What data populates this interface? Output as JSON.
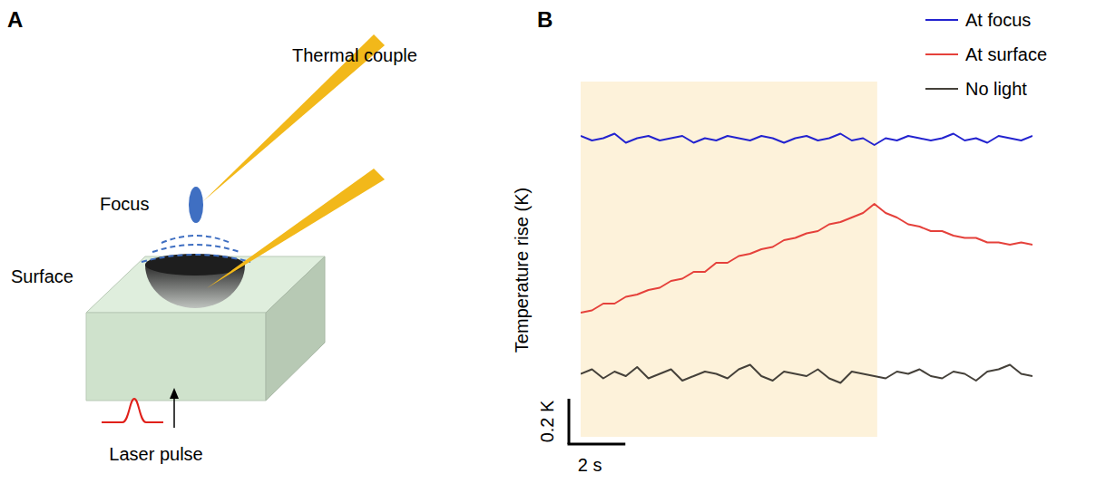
{
  "diagram": {
    "panel": "A",
    "labels": {
      "thermal_couple": "Thermal couple",
      "focus": "Focus",
      "surface": "Surface",
      "laser_pulse": "Laser pulse"
    }
  },
  "chart_data": {
    "panel": "B",
    "type": "line",
    "y_label": "Temperature rise (K)",
    "xlim": [
      0,
      16
    ],
    "ylim": [
      0,
      1.6
    ],
    "tick_labels": false,
    "legend": "top-right",
    "light_period": [
      0,
      10.5
    ],
    "scale_bar": {
      "y": 0.2,
      "y_label": "0.2 K",
      "x": 2,
      "x_label": "2 s"
    },
    "x": [
      0,
      0.4,
      0.8,
      1.2,
      1.6,
      2,
      2.4,
      2.8,
      3.2,
      3.6,
      4,
      4.4,
      4.8,
      5.2,
      5.6,
      6,
      6.4,
      6.8,
      7.2,
      7.6,
      8,
      8.4,
      8.8,
      9.2,
      9.6,
      10,
      10.4,
      10.8,
      11.2,
      11.6,
      12,
      12.4,
      12.8,
      13.2,
      13.6,
      14,
      14.4,
      14.8,
      15.2,
      15.6,
      16
    ],
    "series": [
      {
        "name": "At focus",
        "color": "#2323cf",
        "values": [
          1.36,
          1.34,
          1.35,
          1.37,
          1.33,
          1.35,
          1.36,
          1.34,
          1.35,
          1.36,
          1.33,
          1.35,
          1.34,
          1.36,
          1.35,
          1.34,
          1.36,
          1.35,
          1.33,
          1.35,
          1.36,
          1.34,
          1.35,
          1.37,
          1.34,
          1.35,
          1.32,
          1.35,
          1.34,
          1.36,
          1.35,
          1.34,
          1.35,
          1.37,
          1.34,
          1.35,
          1.33,
          1.36,
          1.35,
          1.34,
          1.36
        ]
      },
      {
        "name": "At surface",
        "color": "#e5413b",
        "values": [
          0.58,
          0.59,
          0.62,
          0.62,
          0.65,
          0.66,
          0.68,
          0.69,
          0.72,
          0.73,
          0.76,
          0.76,
          0.8,
          0.8,
          0.83,
          0.84,
          0.86,
          0.87,
          0.9,
          0.91,
          0.93,
          0.94,
          0.97,
          0.98,
          1.0,
          1.02,
          1.06,
          1.02,
          1.0,
          0.97,
          0.96,
          0.94,
          0.94,
          0.92,
          0.91,
          0.91,
          0.89,
          0.89,
          0.88,
          0.89,
          0.88
        ]
      },
      {
        "name": "No light",
        "color": "#45413a",
        "values": [
          0.31,
          0.33,
          0.29,
          0.32,
          0.3,
          0.34,
          0.29,
          0.31,
          0.33,
          0.28,
          0.3,
          0.32,
          0.31,
          0.29,
          0.33,
          0.35,
          0.3,
          0.28,
          0.32,
          0.31,
          0.3,
          0.33,
          0.29,
          0.27,
          0.32,
          0.31,
          0.3,
          0.29,
          0.32,
          0.31,
          0.33,
          0.3,
          0.29,
          0.32,
          0.31,
          0.28,
          0.32,
          0.33,
          0.35,
          0.31,
          0.3
        ]
      }
    ]
  }
}
